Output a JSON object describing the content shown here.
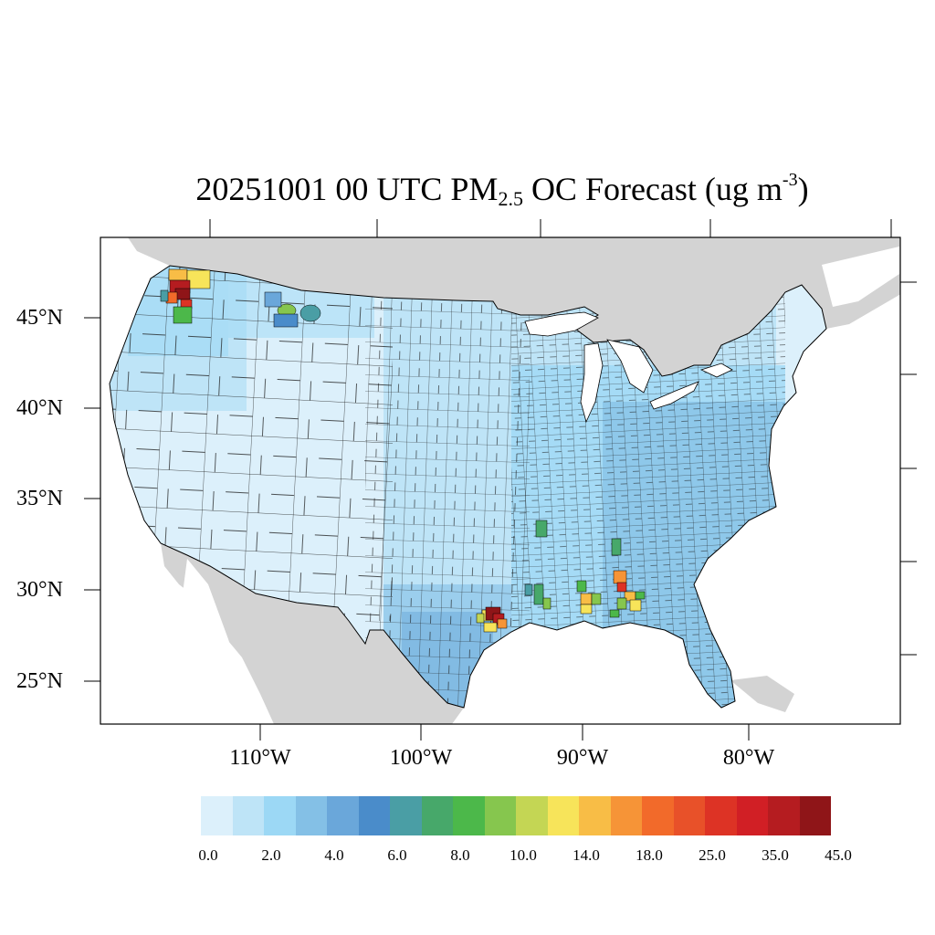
{
  "title": {
    "prefix": "20251001 00 UTC PM",
    "subscript": "2.5",
    "middle": " OC Forecast (ug m",
    "superscript": "-3",
    "suffix": ")"
  },
  "map": {
    "projection": "lambert-conformal",
    "region": "Contiguous United States",
    "boundaries": "county",
    "lat_labels": [
      "45°N",
      "40°N",
      "35°N",
      "30°N",
      "25°N"
    ],
    "lon_labels": [
      "110°W",
      "100°W",
      "90°W",
      "80°W"
    ],
    "land_color": "#d3d3d3",
    "water_color": "#ffffff",
    "hotspots": [
      {
        "region": "northern Idaho / Washington border",
        "level": "45.0+"
      },
      {
        "region": "western Montana",
        "level": "8.0–10.0"
      },
      {
        "region": "southeast Texas (Houston area)",
        "level": "45.0+"
      },
      {
        "region": "Louisiana",
        "level": "14.0–25.0"
      },
      {
        "region": "Mississippi / Alabama",
        "level": "18.0–35.0"
      }
    ]
  },
  "colorbar": {
    "colors": [
      "#dcf0fb",
      "#bee4f7",
      "#9cd8f5",
      "#84c0e6",
      "#6aa7da",
      "#4a8cca",
      "#4a9ea5",
      "#47a86a",
      "#4cb84a",
      "#86c64e",
      "#c4d654",
      "#f7e45a",
      "#f8bd46",
      "#f69437",
      "#f26a2a",
      "#e85129",
      "#dd3325",
      "#d11f25",
      "#b51c20",
      "#8f1518"
    ],
    "labels": [
      "0.0",
      "2.0",
      "4.0",
      "6.0",
      "8.0",
      "10.0",
      "14.0",
      "18.0",
      "25.0",
      "35.0",
      "45.0"
    ]
  }
}
